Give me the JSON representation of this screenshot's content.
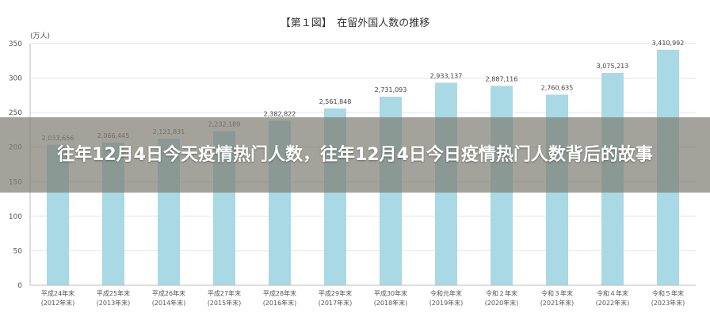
{
  "chart_data": {
    "type": "bar",
    "title": "【第１図】　在留外国人数の推移",
    "yunit": "(万人)",
    "ylim": [
      0,
      350
    ],
    "yticks": [
      0,
      50,
      100,
      150,
      200,
      250,
      300,
      350
    ],
    "grid": true,
    "categories": [
      [
        "平成24年末",
        "(2012年末)"
      ],
      [
        "平成25年末",
        "(2013年末)"
      ],
      [
        "平成26年末",
        "(2014年末)"
      ],
      [
        "平成27年末",
        "(2015年末)"
      ],
      [
        "平成28年末",
        "(2016年末)"
      ],
      [
        "平成29年末",
        "(2017年末)"
      ],
      [
        "平成30年末",
        "(2018年末)"
      ],
      [
        "令和元年末",
        "(2019年末)"
      ],
      [
        "令和２年末",
        "(2020年末)"
      ],
      [
        "令和３年末",
        "(2021年末)"
      ],
      [
        "令和４年末",
        "(2022年末)"
      ],
      [
        "令和５年末",
        "(2023年末)"
      ]
    ],
    "values": [
      2033656,
      2066445,
      2121831,
      2232189,
      2382822,
      2561848,
      2731093,
      2933137,
      2887116,
      2760635,
      3075213,
      3410992
    ],
    "value_labels": [
      "2,033,656",
      "2,066,445",
      "2,121,831",
      "2,232,189",
      "2,382,822",
      "2,561,848",
      "2,731,093",
      "2,933,137",
      "2,887,116",
      "2,760,635",
      "3,075,213",
      "3,410,992"
    ],
    "bar_color": "#a9d9e4"
  },
  "overlay": {
    "title": "往年12月4日今天疫情热门人数，往年12月4日今日疫情热门人数背后的故事"
  }
}
